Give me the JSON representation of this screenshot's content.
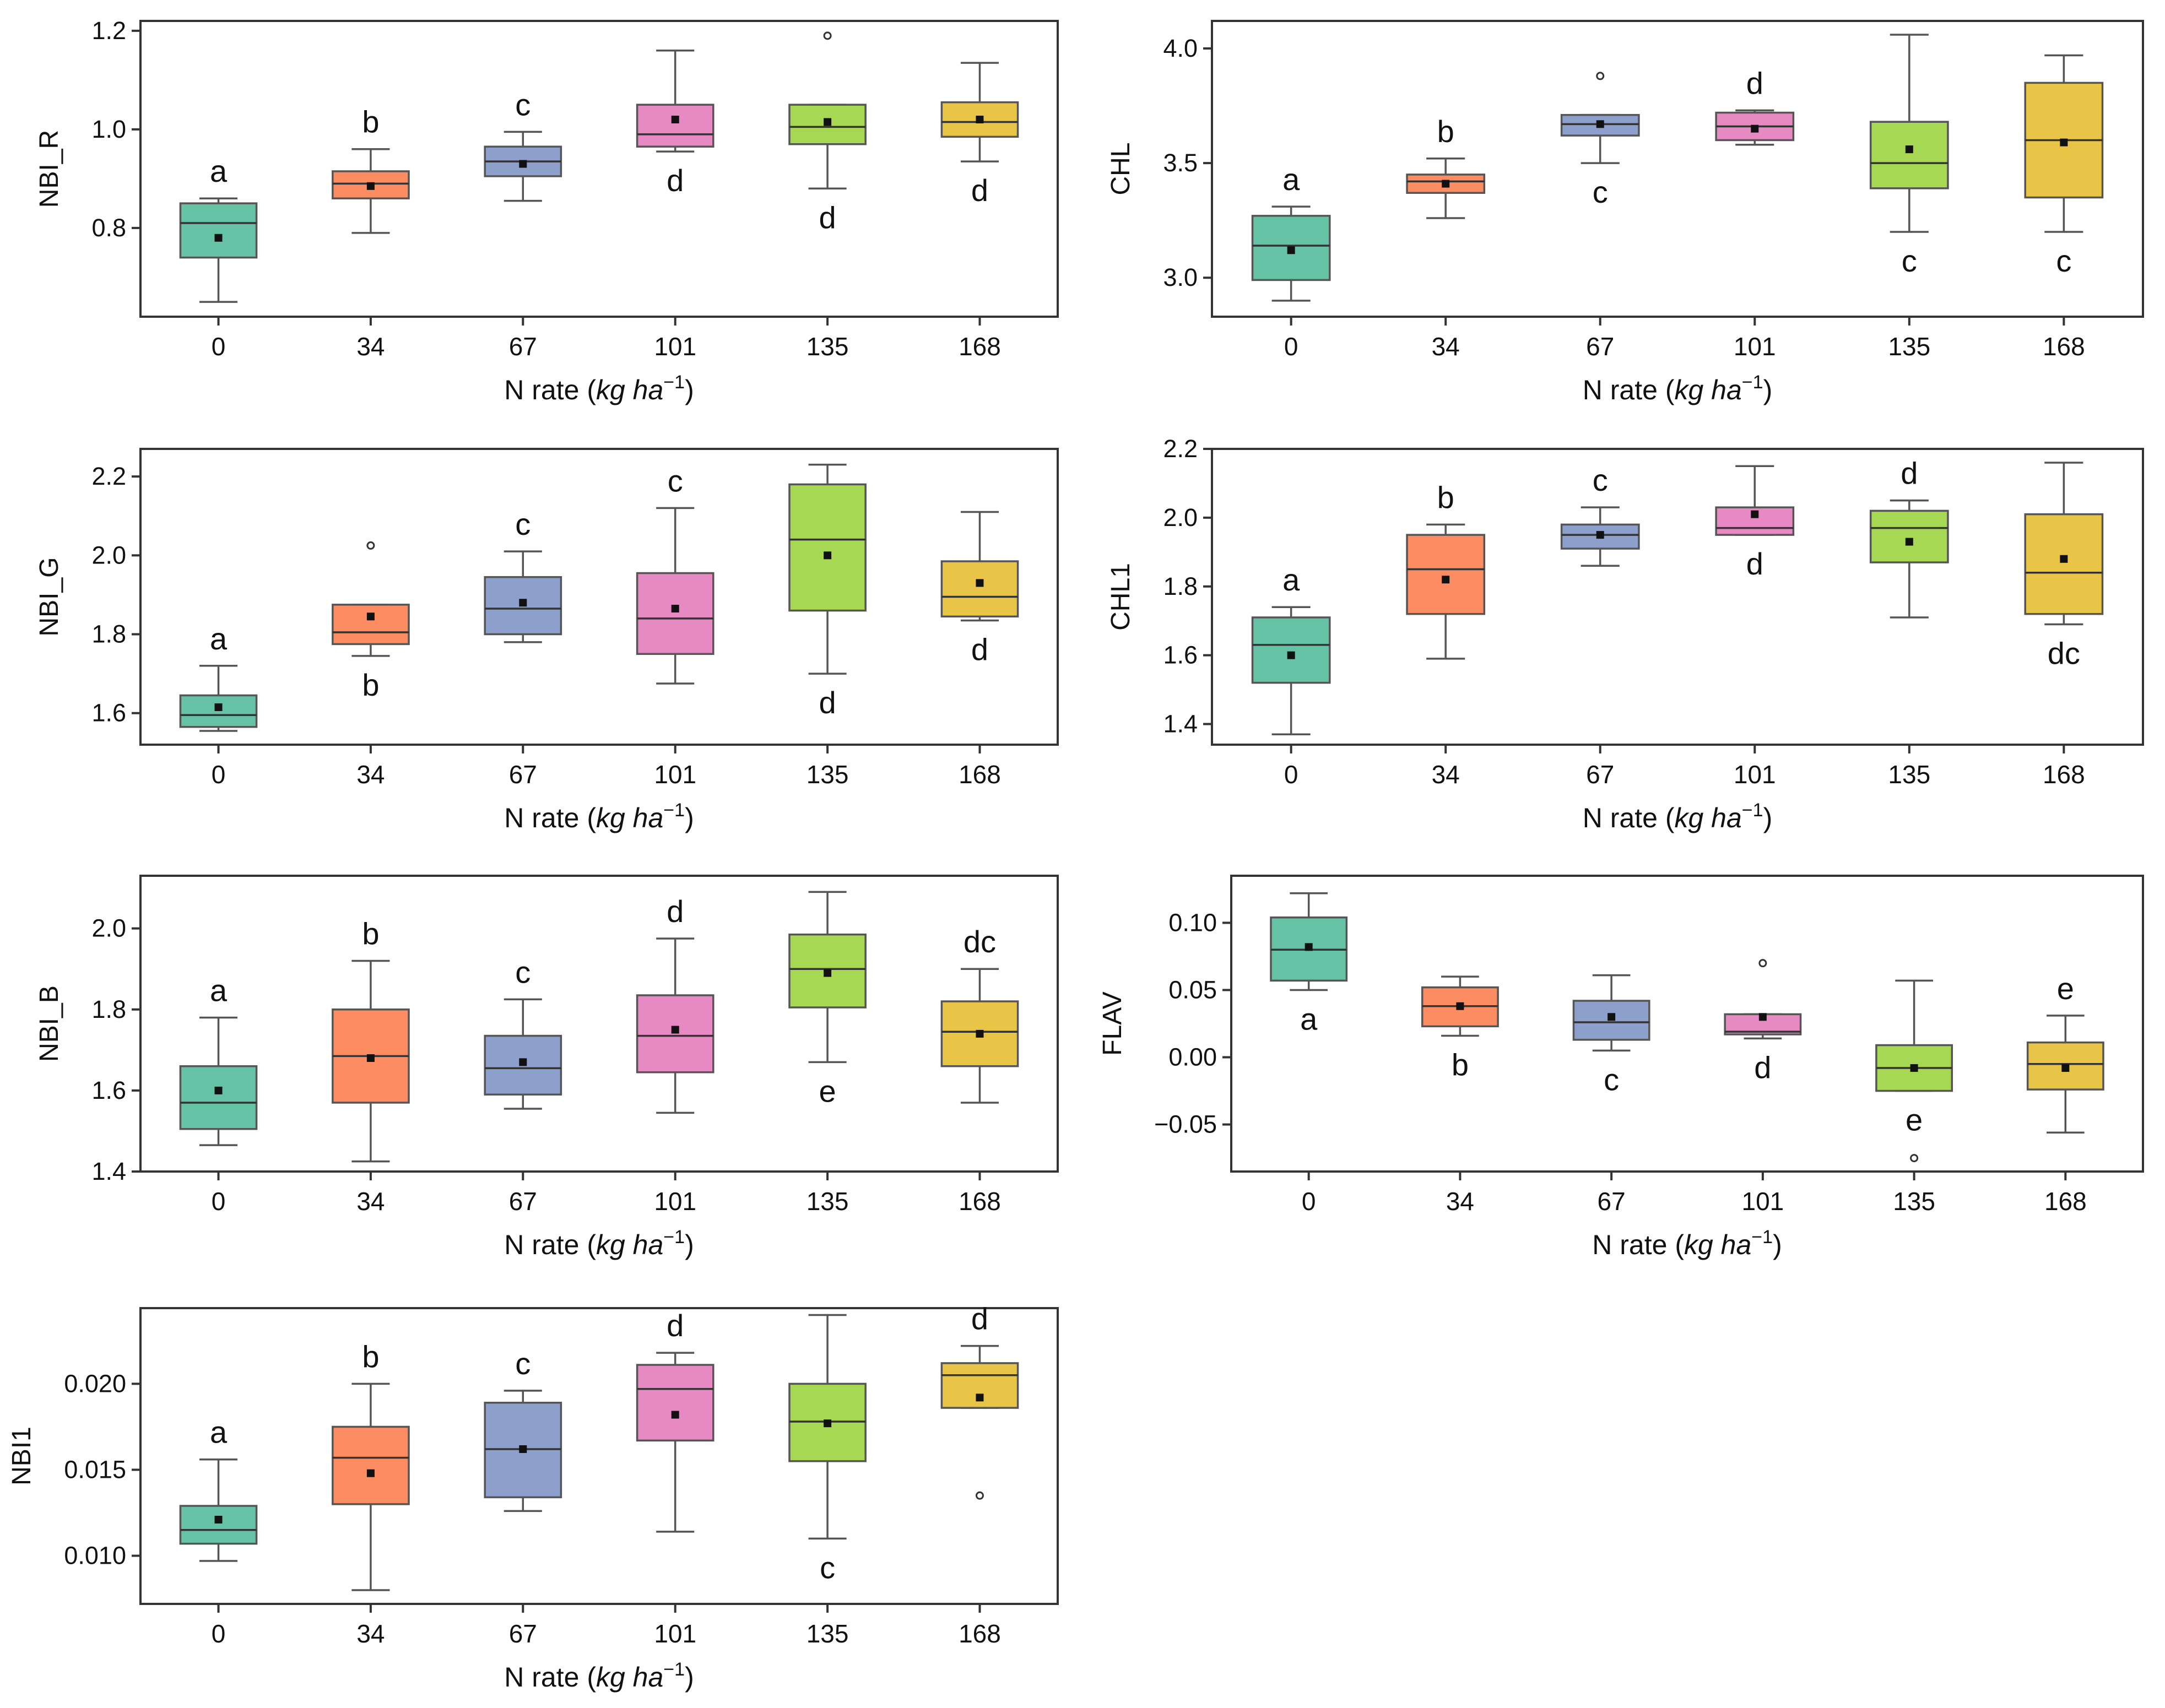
{
  "colors": {
    "0": "#66c2a5",
    "34": "#fc8d62",
    "67": "#8da0cb",
    "101": "#e78ac3",
    "135": "#a6d854",
    "168": "#e5c494",
    "168_fill": "#e8c547",
    "axis": "#333333",
    "whisker": "#555555"
  },
  "chart_data": [
    {
      "type": "box",
      "ylabel": "NBI_R",
      "xlabel_prefix": "N rate (",
      "xlabel_unit": "kg ha",
      "xlabel_exp": "−1",
      "xlabel_suffix": ")",
      "categories": [
        "0",
        "34",
        "67",
        "101",
        "135",
        "168"
      ],
      "ylim": [
        0.62,
        1.22
      ],
      "yticks": [
        0.8,
        1.0,
        1.2
      ],
      "ytick_labels": [
        "0.8",
        "1.0",
        "1.2"
      ],
      "boxes": [
        {
          "whislo": 0.65,
          "q1": 0.74,
          "med": 0.81,
          "q3": 0.85,
          "whishi": 0.86,
          "mean": 0.78,
          "fliers": [],
          "letter": "a",
          "letter_pos": "above"
        },
        {
          "whislo": 0.79,
          "q1": 0.86,
          "med": 0.89,
          "q3": 0.915,
          "whishi": 0.96,
          "mean": 0.885,
          "fliers": [],
          "letter": "b",
          "letter_pos": "above"
        },
        {
          "whislo": 0.855,
          "q1": 0.905,
          "med": 0.935,
          "q3": 0.965,
          "whishi": 0.995,
          "mean": 0.93,
          "fliers": [],
          "letter": "c",
          "letter_pos": "above"
        },
        {
          "whislo": 0.955,
          "q1": 0.965,
          "med": 0.99,
          "q3": 1.05,
          "whishi": 1.16,
          "mean": 1.02,
          "fliers": [],
          "letter": "d",
          "letter_pos": "below"
        },
        {
          "whislo": 0.88,
          "q1": 0.97,
          "med": 1.005,
          "q3": 1.05,
          "whishi": 1.05,
          "mean": 1.015,
          "fliers": [
            1.19
          ],
          "letter": "d",
          "letter_pos": "below"
        },
        {
          "whislo": 0.935,
          "q1": 0.985,
          "med": 1.015,
          "q3": 1.055,
          "whishi": 1.135,
          "mean": 1.02,
          "fliers": [],
          "letter": "d",
          "letter_pos": "below"
        }
      ]
    },
    {
      "type": "box",
      "ylabel": "CHL",
      "xlabel_prefix": "N rate (",
      "xlabel_unit": "kg ha",
      "xlabel_exp": "−1",
      "xlabel_suffix": ")",
      "categories": [
        "0",
        "34",
        "67",
        "101",
        "135",
        "168"
      ],
      "ylim": [
        2.83,
        4.12
      ],
      "yticks": [
        3.0,
        3.5,
        4.0
      ],
      "ytick_labels": [
        "3.0",
        "3.5",
        "4.0"
      ],
      "boxes": [
        {
          "whislo": 2.9,
          "q1": 2.99,
          "med": 3.14,
          "q3": 3.27,
          "whishi": 3.31,
          "mean": 3.12,
          "fliers": [],
          "letter": "a",
          "letter_pos": "above"
        },
        {
          "whislo": 3.26,
          "q1": 3.37,
          "med": 3.42,
          "q3": 3.45,
          "whishi": 3.52,
          "mean": 3.41,
          "fliers": [],
          "letter": "b",
          "letter_pos": "above"
        },
        {
          "whislo": 3.5,
          "q1": 3.62,
          "med": 3.67,
          "q3": 3.71,
          "whishi": 3.71,
          "mean": 3.67,
          "fliers": [
            3.88
          ],
          "letter": "c",
          "letter_pos": "below"
        },
        {
          "whislo": 3.58,
          "q1": 3.6,
          "med": 3.66,
          "q3": 3.72,
          "whishi": 3.73,
          "mean": 3.65,
          "fliers": [],
          "letter": "d",
          "letter_pos": "above"
        },
        {
          "whislo": 3.2,
          "q1": 3.39,
          "med": 3.5,
          "q3": 3.68,
          "whishi": 4.06,
          "mean": 3.56,
          "fliers": [],
          "letter": "c",
          "letter_pos": "below"
        },
        {
          "whislo": 3.2,
          "q1": 3.35,
          "med": 3.6,
          "q3": 3.85,
          "whishi": 3.97,
          "mean": 3.59,
          "fliers": [],
          "letter": "c",
          "letter_pos": "below"
        }
      ]
    },
    {
      "type": "box",
      "ylabel": "NBI_G",
      "xlabel_prefix": "N rate (",
      "xlabel_unit": "kg ha",
      "xlabel_exp": "−1",
      "xlabel_suffix": ")",
      "categories": [
        "0",
        "34",
        "67",
        "101",
        "135",
        "168"
      ],
      "ylim": [
        1.52,
        2.27
      ],
      "yticks": [
        1.6,
        1.8,
        2.0,
        2.2
      ],
      "ytick_labels": [
        "1.6",
        "1.8",
        "2.0",
        "2.2"
      ],
      "boxes": [
        {
          "whislo": 1.555,
          "q1": 1.565,
          "med": 1.595,
          "q3": 1.645,
          "whishi": 1.72,
          "mean": 1.615,
          "fliers": [],
          "letter": "a",
          "letter_pos": "above"
        },
        {
          "whislo": 1.745,
          "q1": 1.775,
          "med": 1.805,
          "q3": 1.875,
          "whishi": 1.875,
          "mean": 1.845,
          "fliers": [
            2.025
          ],
          "letter": "b",
          "letter_pos": "below"
        },
        {
          "whislo": 1.78,
          "q1": 1.8,
          "med": 1.865,
          "q3": 1.945,
          "whishi": 2.01,
          "mean": 1.88,
          "fliers": [],
          "letter": "c",
          "letter_pos": "above"
        },
        {
          "whislo": 1.675,
          "q1": 1.75,
          "med": 1.84,
          "q3": 1.955,
          "whishi": 2.12,
          "mean": 1.865,
          "fliers": [],
          "letter": "c",
          "letter_pos": "above"
        },
        {
          "whislo": 1.7,
          "q1": 1.86,
          "med": 2.04,
          "q3": 2.18,
          "whishi": 2.23,
          "mean": 2.0,
          "fliers": [],
          "letter": "d",
          "letter_pos": "below"
        },
        {
          "whislo": 1.835,
          "q1": 1.845,
          "med": 1.895,
          "q3": 1.985,
          "whishi": 2.11,
          "mean": 1.93,
          "fliers": [],
          "letter": "d",
          "letter_pos": "below"
        }
      ]
    },
    {
      "type": "box",
      "ylabel": "CHL1",
      "xlabel_prefix": "N rate (",
      "xlabel_unit": "kg ha",
      "xlabel_exp": "−1",
      "xlabel_suffix": ")",
      "categories": [
        "0",
        "34",
        "67",
        "101",
        "135",
        "168"
      ],
      "ylim": [
        1.34,
        2.2
      ],
      "yticks": [
        1.4,
        1.6,
        1.8,
        2.0,
        2.2
      ],
      "ytick_labels": [
        "1.4",
        "1.6",
        "1.8",
        "2.0",
        "2.2"
      ],
      "boxes": [
        {
          "whislo": 1.37,
          "q1": 1.52,
          "med": 1.63,
          "q3": 1.71,
          "whishi": 1.74,
          "mean": 1.6,
          "fliers": [],
          "letter": "a",
          "letter_pos": "above"
        },
        {
          "whislo": 1.59,
          "q1": 1.72,
          "med": 1.85,
          "q3": 1.95,
          "whishi": 1.98,
          "mean": 1.82,
          "fliers": [],
          "letter": "b",
          "letter_pos": "above"
        },
        {
          "whislo": 1.86,
          "q1": 1.91,
          "med": 1.95,
          "q3": 1.98,
          "whishi": 2.03,
          "mean": 1.95,
          "fliers": [],
          "letter": "c",
          "letter_pos": "above"
        },
        {
          "whislo": 1.95,
          "q1": 1.95,
          "med": 1.97,
          "q3": 2.03,
          "whishi": 2.15,
          "mean": 2.01,
          "fliers": [],
          "letter": "d",
          "letter_pos": "below"
        },
        {
          "whislo": 1.71,
          "q1": 1.87,
          "med": 1.97,
          "q3": 2.02,
          "whishi": 2.05,
          "mean": 1.93,
          "fliers": [],
          "letter": "d",
          "letter_pos": "above"
        },
        {
          "whislo": 1.69,
          "q1": 1.72,
          "med": 1.84,
          "q3": 2.01,
          "whishi": 2.16,
          "mean": 1.88,
          "fliers": [],
          "letter": "dc",
          "letter_pos": "below"
        }
      ]
    },
    {
      "type": "box",
      "ylabel": "NBI_B",
      "xlabel_prefix": "N rate (",
      "xlabel_unit": "kg ha",
      "xlabel_exp": "−1",
      "xlabel_suffix": ")",
      "categories": [
        "0",
        "34",
        "67",
        "101",
        "135",
        "168"
      ],
      "ylim": [
        1.4,
        2.13
      ],
      "yticks": [
        1.4,
        1.6,
        1.8,
        2.0
      ],
      "ytick_labels": [
        "1.4",
        "1.6",
        "1.8",
        "2.0"
      ],
      "boxes": [
        {
          "whislo": 1.465,
          "q1": 1.505,
          "med": 1.57,
          "q3": 1.66,
          "whishi": 1.78,
          "mean": 1.6,
          "fliers": [],
          "letter": "a",
          "letter_pos": "above"
        },
        {
          "whislo": 1.425,
          "q1": 1.57,
          "med": 1.685,
          "q3": 1.8,
          "whishi": 1.92,
          "mean": 1.68,
          "fliers": [],
          "letter": "b",
          "letter_pos": "above"
        },
        {
          "whislo": 1.555,
          "q1": 1.59,
          "med": 1.655,
          "q3": 1.735,
          "whishi": 1.825,
          "mean": 1.67,
          "fliers": [],
          "letter": "c",
          "letter_pos": "above"
        },
        {
          "whislo": 1.545,
          "q1": 1.645,
          "med": 1.735,
          "q3": 1.835,
          "whishi": 1.975,
          "mean": 1.75,
          "fliers": [],
          "letter": "d",
          "letter_pos": "above"
        },
        {
          "whislo": 1.67,
          "q1": 1.805,
          "med": 1.9,
          "q3": 1.985,
          "whishi": 2.09,
          "mean": 1.89,
          "fliers": [],
          "letter": "e",
          "letter_pos": "below"
        },
        {
          "whislo": 1.57,
          "q1": 1.66,
          "med": 1.745,
          "q3": 1.82,
          "whishi": 1.9,
          "mean": 1.74,
          "fliers": [],
          "letter": "dc",
          "letter_pos": "above"
        }
      ]
    },
    {
      "type": "box",
      "ylabel": "FLAV",
      "xlabel_prefix": "N rate (",
      "xlabel_unit": "kg ha",
      "xlabel_exp": "−1",
      "xlabel_suffix": ")",
      "categories": [
        "0",
        "34",
        "67",
        "101",
        "135",
        "168"
      ],
      "ylim": [
        -0.085,
        0.135
      ],
      "yticks": [
        -0.05,
        0.0,
        0.05,
        0.1
      ],
      "ytick_labels": [
        "−0.05",
        "0.00",
        "0.05",
        "0.10"
      ],
      "boxes": [
        {
          "whislo": 0.05,
          "q1": 0.057,
          "med": 0.08,
          "q3": 0.104,
          "whishi": 0.122,
          "mean": 0.082,
          "fliers": [],
          "letter": "a",
          "letter_pos": "below"
        },
        {
          "whislo": 0.016,
          "q1": 0.023,
          "med": 0.038,
          "q3": 0.052,
          "whishi": 0.06,
          "mean": 0.038,
          "fliers": [],
          "letter": "b",
          "letter_pos": "below"
        },
        {
          "whislo": 0.005,
          "q1": 0.013,
          "med": 0.026,
          "q3": 0.042,
          "whishi": 0.061,
          "mean": 0.03,
          "fliers": [],
          "letter": "c",
          "letter_pos": "below"
        },
        {
          "whislo": 0.014,
          "q1": 0.017,
          "med": 0.019,
          "q3": 0.032,
          "whishi": 0.032,
          "mean": 0.03,
          "fliers": [
            0.07
          ],
          "letter": "d",
          "letter_pos": "below"
        },
        {
          "whislo": -0.025,
          "q1": -0.025,
          "med": -0.008,
          "q3": 0.009,
          "whishi": 0.057,
          "mean": -0.008,
          "fliers": [
            -0.075
          ],
          "letter": "e",
          "letter_pos": "below"
        },
        {
          "whislo": -0.056,
          "q1": -0.024,
          "med": -0.005,
          "q3": 0.011,
          "whishi": 0.031,
          "mean": -0.008,
          "fliers": [],
          "letter": "e",
          "letter_pos": "above"
        }
      ]
    },
    {
      "type": "box",
      "ylabel": "NBI1",
      "xlabel_prefix": "N rate (",
      "xlabel_unit": "kg ha",
      "xlabel_exp": "−1",
      "xlabel_suffix": ")",
      "categories": [
        "0",
        "34",
        "67",
        "101",
        "135",
        "168"
      ],
      "ylim": [
        0.0072,
        0.0244
      ],
      "yticks": [
        0.01,
        0.015,
        0.02
      ],
      "ytick_labels": [
        "0.010",
        "0.015",
        "0.020"
      ],
      "boxes": [
        {
          "whislo": 0.0097,
          "q1": 0.0107,
          "med": 0.0115,
          "q3": 0.0129,
          "whishi": 0.0156,
          "mean": 0.0121,
          "fliers": [],
          "letter": "a",
          "letter_pos": "above"
        },
        {
          "whislo": 0.008,
          "q1": 0.013,
          "med": 0.0157,
          "q3": 0.0175,
          "whishi": 0.02,
          "mean": 0.0148,
          "fliers": [],
          "letter": "b",
          "letter_pos": "above"
        },
        {
          "whislo": 0.0126,
          "q1": 0.0134,
          "med": 0.0162,
          "q3": 0.0189,
          "whishi": 0.0196,
          "mean": 0.0162,
          "fliers": [],
          "letter": "c",
          "letter_pos": "above"
        },
        {
          "whislo": 0.0114,
          "q1": 0.0167,
          "med": 0.0197,
          "q3": 0.0211,
          "whishi": 0.0218,
          "mean": 0.0182,
          "fliers": [],
          "letter": "d",
          "letter_pos": "above"
        },
        {
          "whislo": 0.011,
          "q1": 0.0155,
          "med": 0.0178,
          "q3": 0.02,
          "whishi": 0.024,
          "mean": 0.0177,
          "fliers": [],
          "letter": "c",
          "letter_pos": "below"
        },
        {
          "whislo": 0.0186,
          "q1": 0.0186,
          "med": 0.0205,
          "q3": 0.0212,
          "whishi": 0.0222,
          "mean": 0.0192,
          "fliers": [
            0.0135
          ],
          "letter": "d",
          "letter_pos": "above"
        }
      ]
    }
  ]
}
